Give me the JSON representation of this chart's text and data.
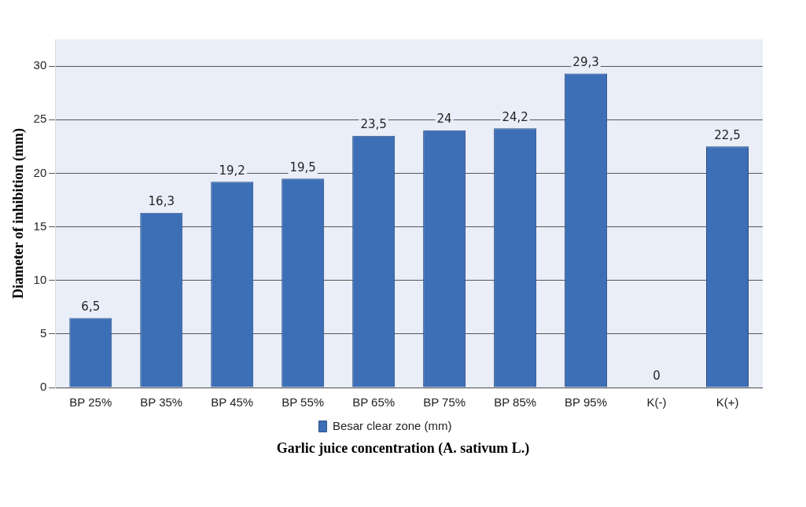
{
  "chart_data": {
    "type": "bar",
    "categories": [
      "BP 25%",
      "BP 35%",
      "BP 45%",
      "BP 55%",
      "BP 65%",
      "BP 75%",
      "BP 85%",
      "BP 95%",
      "K(-)",
      "K(+)"
    ],
    "series": [
      {
        "name": "Besar clear zone (mm)",
        "color": "#3d6fb6",
        "values": [
          6.5,
          16.3,
          19.2,
          19.5,
          23.5,
          24,
          24.2,
          29.3,
          0,
          22.5
        ],
        "value_labels": [
          "6,5",
          "16,3",
          "19,2",
          "19,5",
          "23,5",
          "24",
          "24,2",
          "29,3",
          "0",
          "22,5"
        ]
      }
    ],
    "xlabel": "Garlic juice concentration (A. sativum L.)",
    "ylabel": "Diameter of inhibition (mm)",
    "ylim": [
      0,
      32.5
    ],
    "yticks": [
      0,
      5,
      10,
      15,
      20,
      25,
      30
    ],
    "grid": "y",
    "legend": "bottom"
  }
}
